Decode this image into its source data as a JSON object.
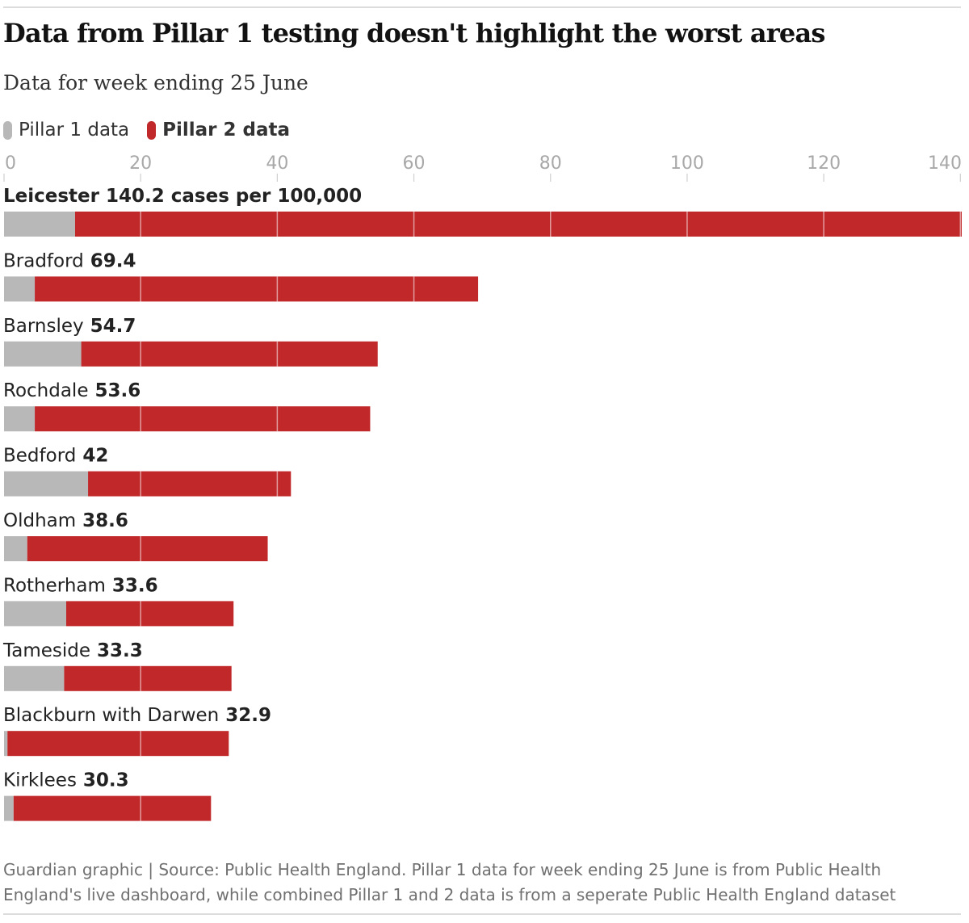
{
  "title": "Data from Pillar 1 testing doesn't highlight the worst areas",
  "subtitle": "Data for week ending 25 June",
  "legend": [
    {
      "label": "Pillar 1 data",
      "color": "#b8b8b8",
      "bold": false
    },
    {
      "label": "Pillar 2 data",
      "color": "#c0282a",
      "bold": true
    }
  ],
  "source": "Guardian graphic | Source: Public Health England. Pillar 1 data for week ending 25 June is from Public Health England's live dashboard, while combined Pillar 1 and 2 data is from a seperate Public Health England dataset",
  "chart_data": {
    "type": "bar",
    "orientation": "horizontal",
    "stacked": true,
    "xlim": [
      0,
      140.2
    ],
    "x_ticks": [
      0,
      20,
      40,
      60,
      80,
      100,
      120,
      140
    ],
    "grid": true,
    "legend_position": "top-left",
    "first_value_suffix": " cases per 100,000",
    "categories": [
      "Leicester",
      "Bradford",
      "Barnsley",
      "Rochdale",
      "Bedford",
      "Oldham",
      "Rotherham",
      "Tameside",
      "Blackburn with Darwen",
      "Kirklees"
    ],
    "totals": [
      140.2,
      69.4,
      54.7,
      53.6,
      42,
      38.6,
      33.6,
      33.3,
      32.9,
      30.3
    ],
    "series": [
      {
        "name": "Pillar 1 data",
        "color": "#b8b8b8",
        "values": [
          10.4,
          4.5,
          11.3,
          4.5,
          12.3,
          3.4,
          9.1,
          8.8,
          0.5,
          1.4
        ]
      },
      {
        "name": "Pillar 2 data",
        "color": "#c0282a",
        "values": [
          129.8,
          64.9,
          43.4,
          49.1,
          29.7,
          35.2,
          24.5,
          24.5,
          32.4,
          28.9
        ]
      }
    ]
  }
}
